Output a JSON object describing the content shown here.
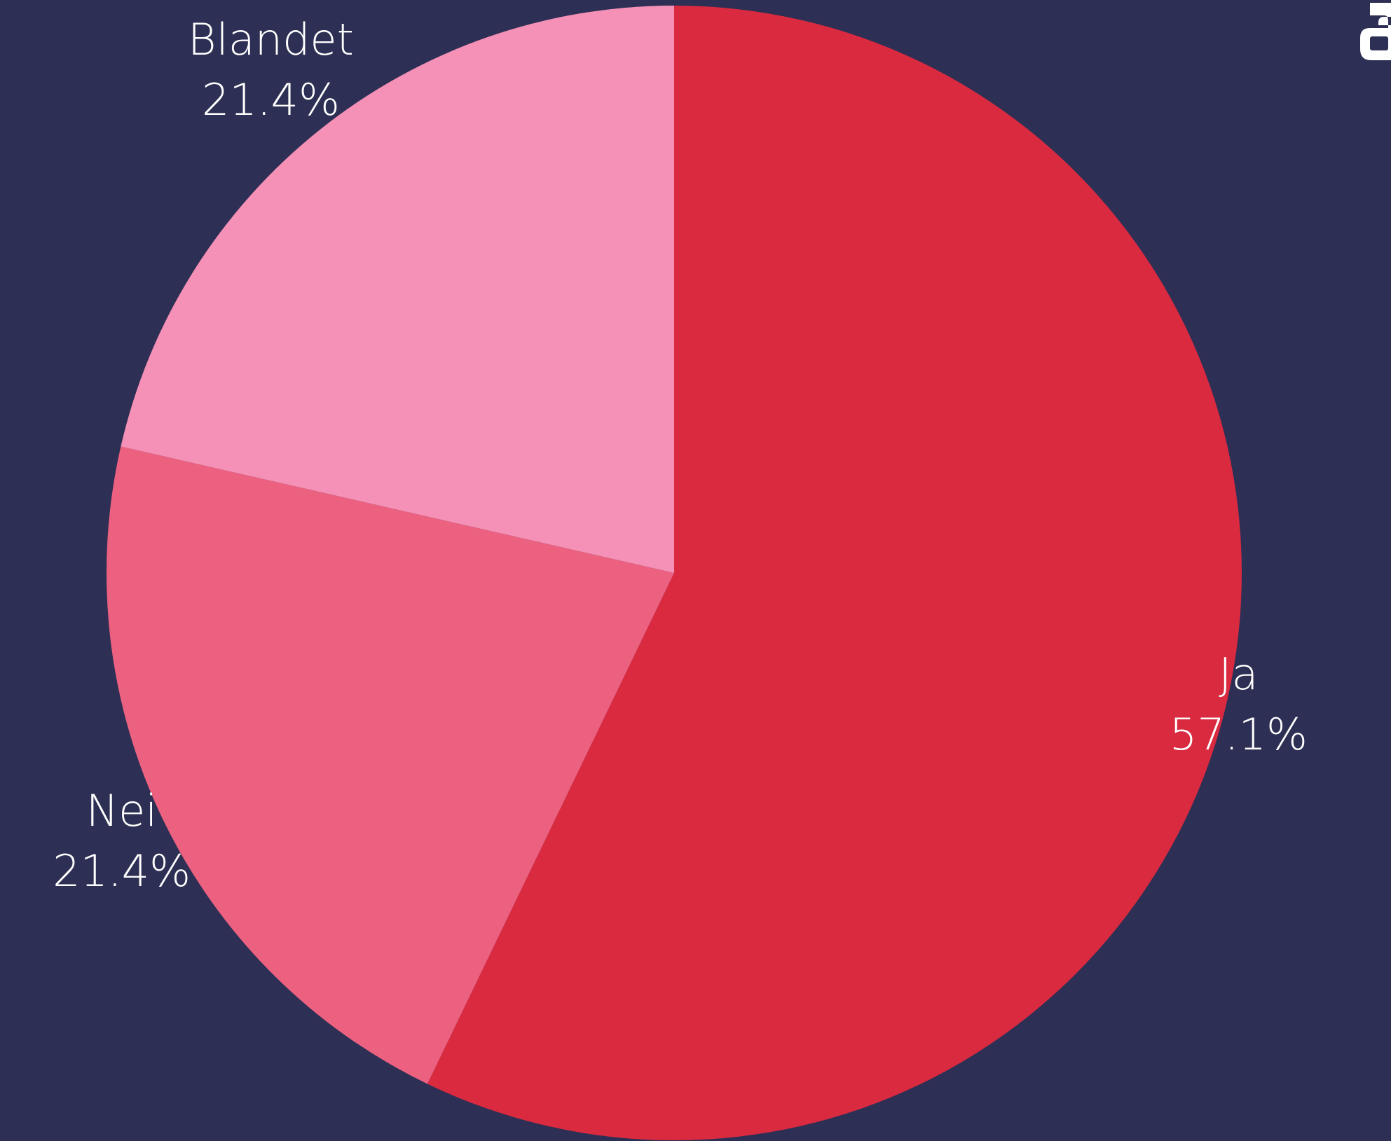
{
  "chart_data": {
    "type": "pie",
    "categories": [
      "Ja",
      "Nei",
      "Blandet"
    ],
    "values": [
      57.1,
      21.4,
      21.4
    ],
    "labels": [
      "57.1%",
      "21.4%",
      "21.4%"
    ],
    "colors": [
      "#d92a40",
      "#ec6180",
      "#f590b6"
    ],
    "start_angle_deg": 0,
    "direction": "clockwise",
    "background": "#2d2f54"
  }
}
